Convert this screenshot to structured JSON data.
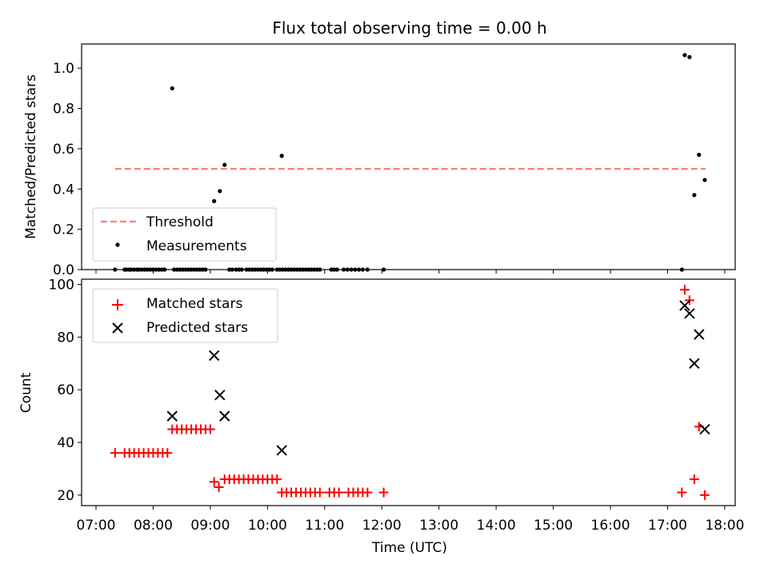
{
  "chart_data": [
    {
      "type": "scatter",
      "title": "Flux total observing time = 0.00 h",
      "ylabel": "Matched/Predicted stars",
      "xlim": [
        "07:00",
        "18:10"
      ],
      "ylim": [
        0,
        1.12
      ],
      "yticks": [
        "0.0",
        "0.2",
        "0.4",
        "0.6",
        "0.8",
        "1.0"
      ],
      "legend_position": "lower-left",
      "threshold": {
        "name": "Threshold",
        "value": 0.5,
        "x_start": "07:20",
        "x_end": "17:40",
        "color": "#ff7f7f",
        "style": "dashed"
      },
      "series": [
        {
          "name": "Measurements",
          "color": "#000000",
          "marker": "dot",
          "points": [
            [
              "07:20",
              0.0
            ],
            [
              "07:30",
              0.0
            ],
            [
              "07:32",
              0.0
            ],
            [
              "07:35",
              0.0
            ],
            [
              "07:37",
              0.0
            ],
            [
              "07:40",
              0.0
            ],
            [
              "07:43",
              0.0
            ],
            [
              "07:45",
              0.0
            ],
            [
              "07:48",
              0.0
            ],
            [
              "07:51",
              0.0
            ],
            [
              "07:54",
              0.0
            ],
            [
              "07:57",
              0.0
            ],
            [
              "08:00",
              0.0
            ],
            [
              "08:03",
              0.0
            ],
            [
              "08:06",
              0.0
            ],
            [
              "08:09",
              0.0
            ],
            [
              "08:12",
              0.0
            ],
            [
              "08:20",
              0.9
            ],
            [
              "08:22",
              0.0
            ],
            [
              "08:25",
              0.0
            ],
            [
              "08:28",
              0.0
            ],
            [
              "08:31",
              0.0
            ],
            [
              "08:34",
              0.0
            ],
            [
              "08:37",
              0.0
            ],
            [
              "08:40",
              0.0
            ],
            [
              "08:43",
              0.0
            ],
            [
              "08:46",
              0.0
            ],
            [
              "08:49",
              0.0
            ],
            [
              "08:52",
              0.0
            ],
            [
              "08:55",
              0.0
            ],
            [
              "09:04",
              0.34
            ],
            [
              "09:10",
              0.39
            ],
            [
              "09:15",
              0.52
            ],
            [
              "09:20",
              0.0
            ],
            [
              "09:23",
              0.0
            ],
            [
              "09:27",
              0.0
            ],
            [
              "09:30",
              0.0
            ],
            [
              "09:33",
              0.0
            ],
            [
              "09:38",
              0.0
            ],
            [
              "09:41",
              0.0
            ],
            [
              "09:44",
              0.0
            ],
            [
              "09:47",
              0.0
            ],
            [
              "09:50",
              0.0
            ],
            [
              "09:53",
              0.0
            ],
            [
              "09:56",
              0.0
            ],
            [
              "09:59",
              0.0
            ],
            [
              "10:02",
              0.0
            ],
            [
              "10:05",
              0.0
            ],
            [
              "10:15",
              0.565
            ],
            [
              "10:10",
              0.0
            ],
            [
              "10:13",
              0.0
            ],
            [
              "10:16",
              0.0
            ],
            [
              "10:19",
              0.0
            ],
            [
              "10:22",
              0.0
            ],
            [
              "10:25",
              0.0
            ],
            [
              "10:28",
              0.0
            ],
            [
              "10:31",
              0.0
            ],
            [
              "10:34",
              0.0
            ],
            [
              "10:37",
              0.0
            ],
            [
              "10:40",
              0.0
            ],
            [
              "10:43",
              0.0
            ],
            [
              "10:46",
              0.0
            ],
            [
              "10:49",
              0.0
            ],
            [
              "10:52",
              0.0
            ],
            [
              "10:55",
              0.0
            ],
            [
              "11:07",
              0.0
            ],
            [
              "11:10",
              0.0
            ],
            [
              "11:13",
              0.0
            ],
            [
              "11:20",
              0.0
            ],
            [
              "11:24",
              0.0
            ],
            [
              "11:28",
              0.0
            ],
            [
              "11:32",
              0.0
            ],
            [
              "11:36",
              0.0
            ],
            [
              "11:40",
              0.0
            ],
            [
              "11:45",
              0.0
            ],
            [
              "12:02",
              0.0
            ],
            [
              "17:15",
              0.0
            ],
            [
              "17:18",
              1.065
            ],
            [
              "17:23",
              1.055
            ],
            [
              "17:28",
              0.37
            ],
            [
              "17:33",
              0.57
            ],
            [
              "17:39",
              0.445
            ]
          ]
        }
      ]
    },
    {
      "type": "scatter",
      "xlabel": "Time (UTC)",
      "ylabel": "Count",
      "xlim": [
        "07:00",
        "18:10"
      ],
      "ylim": [
        16,
        102
      ],
      "yticks": [
        "20",
        "40",
        "60",
        "80",
        "100"
      ],
      "xticks": [
        "07:00",
        "08:00",
        "09:00",
        "10:00",
        "11:00",
        "12:00",
        "13:00",
        "14:00",
        "15:00",
        "16:00",
        "17:00",
        "18:00"
      ],
      "legend_position": "upper-left",
      "series": [
        {
          "name": "Matched stars",
          "color": "#ff0000",
          "marker": "plus",
          "points": [
            [
              "07:20",
              36
            ],
            [
              "07:30",
              36
            ],
            [
              "07:35",
              36
            ],
            [
              "07:40",
              36
            ],
            [
              "07:45",
              36
            ],
            [
              "07:50",
              36
            ],
            [
              "07:55",
              36
            ],
            [
              "08:00",
              36
            ],
            [
              "08:05",
              36
            ],
            [
              "08:10",
              36
            ],
            [
              "08:15",
              36
            ],
            [
              "08:20",
              45
            ],
            [
              "08:25",
              45
            ],
            [
              "08:30",
              45
            ],
            [
              "08:35",
              45
            ],
            [
              "08:40",
              45
            ],
            [
              "08:45",
              45
            ],
            [
              "08:50",
              45
            ],
            [
              "08:55",
              45
            ],
            [
              "09:00",
              45
            ],
            [
              "09:04",
              25
            ],
            [
              "09:09",
              23
            ],
            [
              "09:15",
              26
            ],
            [
              "09:20",
              26
            ],
            [
              "09:25",
              26
            ],
            [
              "09:30",
              26
            ],
            [
              "09:35",
              26
            ],
            [
              "09:40",
              26
            ],
            [
              "09:45",
              26
            ],
            [
              "09:50",
              26
            ],
            [
              "09:55",
              26
            ],
            [
              "10:00",
              26
            ],
            [
              "10:05",
              26
            ],
            [
              "10:10",
              26
            ],
            [
              "10:15",
              21
            ],
            [
              "10:20",
              21
            ],
            [
              "10:25",
              21
            ],
            [
              "10:30",
              21
            ],
            [
              "10:35",
              21
            ],
            [
              "10:40",
              21
            ],
            [
              "10:45",
              21
            ],
            [
              "10:50",
              21
            ],
            [
              "10:55",
              21
            ],
            [
              "11:05",
              21
            ],
            [
              "11:10",
              21
            ],
            [
              "11:15",
              21
            ],
            [
              "11:25",
              21
            ],
            [
              "11:30",
              21
            ],
            [
              "11:35",
              21
            ],
            [
              "11:40",
              21
            ],
            [
              "11:45",
              21
            ],
            [
              "12:02",
              21
            ],
            [
              "17:15",
              21
            ],
            [
              "17:18",
              98
            ],
            [
              "17:23",
              94
            ],
            [
              "17:28",
              26
            ],
            [
              "17:33",
              46
            ],
            [
              "17:39",
              20
            ]
          ]
        },
        {
          "name": "Predicted stars",
          "color": "#000000",
          "marker": "x",
          "points": [
            [
              "08:20",
              50
            ],
            [
              "09:04",
              73
            ],
            [
              "09:10",
              58
            ],
            [
              "09:15",
              50
            ],
            [
              "10:15",
              37
            ],
            [
              "17:18",
              92
            ],
            [
              "17:23",
              89
            ],
            [
              "17:28",
              70
            ],
            [
              "17:33",
              81
            ],
            [
              "17:39",
              45
            ]
          ]
        }
      ]
    }
  ]
}
